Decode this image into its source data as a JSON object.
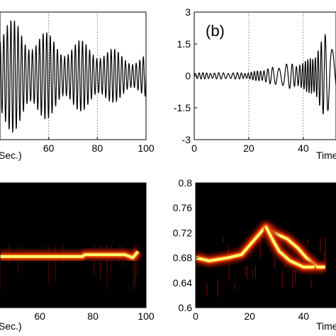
{
  "chart_data": [
    {
      "type": "line",
      "panel": "top-left",
      "xlabel": "Sec.)",
      "xlim": [
        40,
        100
      ],
      "ylim": [
        -1.5,
        1.5
      ],
      "xticks": [
        60,
        80,
        100
      ],
      "grid_x": true,
      "series": [
        {
          "description_free": true,
          "envelope": [
            [
              40,
              1.4
            ],
            [
              50,
              1.25
            ],
            [
              60,
              1.0
            ],
            [
              70,
              0.85
            ],
            [
              80,
              0.8
            ],
            [
              90,
              0.55
            ],
            [
              100,
              0.5
            ]
          ],
          "frequency_hz": 0.68
        }
      ]
    },
    {
      "type": "line",
      "panel": "top-right",
      "panel_label": "(b)",
      "xlabel": "Time",
      "xlim": [
        0,
        52
      ],
      "ylim": [
        -3,
        3
      ],
      "xticks": [
        0,
        20,
        40
      ],
      "yticks": [
        "3",
        "1.5",
        "0",
        "-1.5",
        "-3"
      ],
      "grid_x": true,
      "series": [
        {
          "envelope": [
            [
              0,
              0.15
            ],
            [
              20,
              0.15
            ],
            [
              27,
              0.35
            ],
            [
              35,
              0.6
            ],
            [
              40,
              0.6
            ],
            [
              45,
              1.2
            ],
            [
              48,
              2.0
            ],
            [
              52,
              1.5
            ]
          ],
          "frequency_hz": 0.68
        }
      ]
    },
    {
      "type": "heatmap",
      "panel": "bottom-left",
      "xlabel": "Sec.)",
      "xlim": [
        45,
        100
      ],
      "ylim": [
        0.6,
        0.8
      ],
      "xticks": [
        60,
        80,
        100
      ],
      "ridge": [
        [
          45,
          0.682
        ],
        [
          76,
          0.682
        ],
        [
          77,
          0.685
        ],
        [
          92,
          0.685
        ],
        [
          95,
          0.68
        ],
        [
          97,
          0.69
        ]
      ]
    },
    {
      "type": "heatmap",
      "panel": "bottom-right",
      "xlabel": "Time",
      "xlim": [
        0,
        52
      ],
      "ylim": [
        0.6,
        0.8
      ],
      "xticks": [
        0,
        20,
        40
      ],
      "yticks": [
        "0.8",
        "0.76",
        "0.72",
        "0.68",
        "0.64",
        "0.6"
      ],
      "ridge": [
        [
          0,
          0.68
        ],
        [
          5,
          0.675
        ],
        [
          12,
          0.68
        ],
        [
          17,
          0.685
        ],
        [
          20,
          0.7
        ],
        [
          24,
          0.72
        ],
        [
          26,
          0.73
        ],
        [
          29,
          0.72
        ],
        [
          34,
          0.71
        ],
        [
          38,
          0.695
        ],
        [
          41,
          0.68
        ],
        [
          45,
          0.665
        ],
        [
          48,
          0.665
        ]
      ],
      "ridge_lower": [
        [
          26,
          0.73
        ],
        [
          29,
          0.705
        ],
        [
          31,
          0.69
        ],
        [
          35,
          0.675
        ],
        [
          40,
          0.665
        ],
        [
          44,
          0.665
        ]
      ]
    }
  ],
  "colors": {
    "signal": "#000000",
    "heat_background": "#000000",
    "heat_low": "#a01800",
    "heat_mid": "#ff5000",
    "heat_high": "#ffff70"
  }
}
